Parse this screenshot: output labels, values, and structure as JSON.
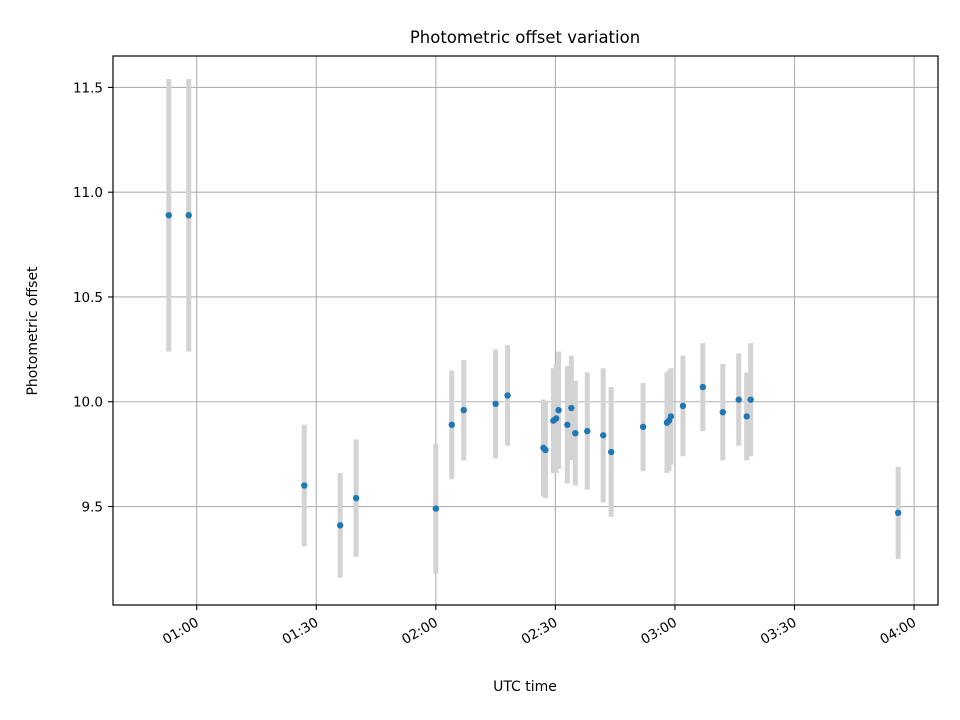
{
  "chart_data": {
    "type": "scatter",
    "title": "Photometric offset variation",
    "xlabel": "UTC time",
    "ylabel": "Photometric offset",
    "x_unit": "UTC time (HH:MM)",
    "xlim": [
      "00:39",
      "04:06"
    ],
    "ylim": [
      9.03,
      11.65
    ],
    "x_ticks": [
      "01:00",
      "01:30",
      "02:00",
      "02:30",
      "03:00",
      "03:30",
      "04:00"
    ],
    "y_ticks": [
      9.5,
      10.0,
      10.5,
      11.0,
      11.5
    ],
    "y_tick_labels": [
      "9.5",
      "10.0",
      "10.5",
      "11.0",
      "11.5"
    ],
    "grid": true,
    "point_color": "#1f77b4",
    "errorbar_color": "#d3d3d3",
    "points": [
      {
        "x": "00:53",
        "y": 10.89,
        "err": 0.65
      },
      {
        "x": "00:58",
        "y": 10.89,
        "err": 0.65
      },
      {
        "x": "01:27",
        "y": 9.6,
        "err": 0.29
      },
      {
        "x": "01:36",
        "y": 9.41,
        "err": 0.25
      },
      {
        "x": "01:40",
        "y": 9.54,
        "err": 0.28
      },
      {
        "x": "02:00",
        "y": 9.49,
        "err": 0.31
      },
      {
        "x": "02:04",
        "y": 9.89,
        "err": 0.26
      },
      {
        "x": "02:07",
        "y": 9.96,
        "err": 0.24
      },
      {
        "x": "02:15",
        "y": 9.99,
        "err": 0.26
      },
      {
        "x": "02:18",
        "y": 10.03,
        "err": 0.24
      },
      {
        "x": "02:27",
        "y": 9.78,
        "err": 0.23
      },
      {
        "x": "02:27.5",
        "y": 9.77,
        "err": 0.23
      },
      {
        "x": "02:29.5",
        "y": 9.91,
        "err": 0.25
      },
      {
        "x": "02:30.2",
        "y": 9.92,
        "err": 0.26
      },
      {
        "x": "02:30.8",
        "y": 9.96,
        "err": 0.28
      },
      {
        "x": "02:33",
        "y": 9.89,
        "err": 0.28
      },
      {
        "x": "02:34",
        "y": 9.97,
        "err": 0.25
      },
      {
        "x": "02:35",
        "y": 9.85,
        "err": 0.25
      },
      {
        "x": "02:38",
        "y": 9.86,
        "err": 0.28
      },
      {
        "x": "02:42",
        "y": 9.84,
        "err": 0.32
      },
      {
        "x": "02:44",
        "y": 9.76,
        "err": 0.31
      },
      {
        "x": "02:52",
        "y": 9.88,
        "err": 0.21
      },
      {
        "x": "02:58",
        "y": 9.9,
        "err": 0.24
      },
      {
        "x": "02:58.5",
        "y": 9.91,
        "err": 0.24
      },
      {
        "x": "02:59",
        "y": 9.93,
        "err": 0.23
      },
      {
        "x": "03:02",
        "y": 9.98,
        "err": 0.24
      },
      {
        "x": "03:07",
        "y": 10.07,
        "err": 0.21
      },
      {
        "x": "03:12",
        "y": 9.95,
        "err": 0.23
      },
      {
        "x": "03:16",
        "y": 10.01,
        "err": 0.22
      },
      {
        "x": "03:18",
        "y": 9.93,
        "err": 0.21
      },
      {
        "x": "03:19",
        "y": 10.01,
        "err": 0.27
      },
      {
        "x": "03:56",
        "y": 9.47,
        "err": 0.22
      }
    ]
  }
}
